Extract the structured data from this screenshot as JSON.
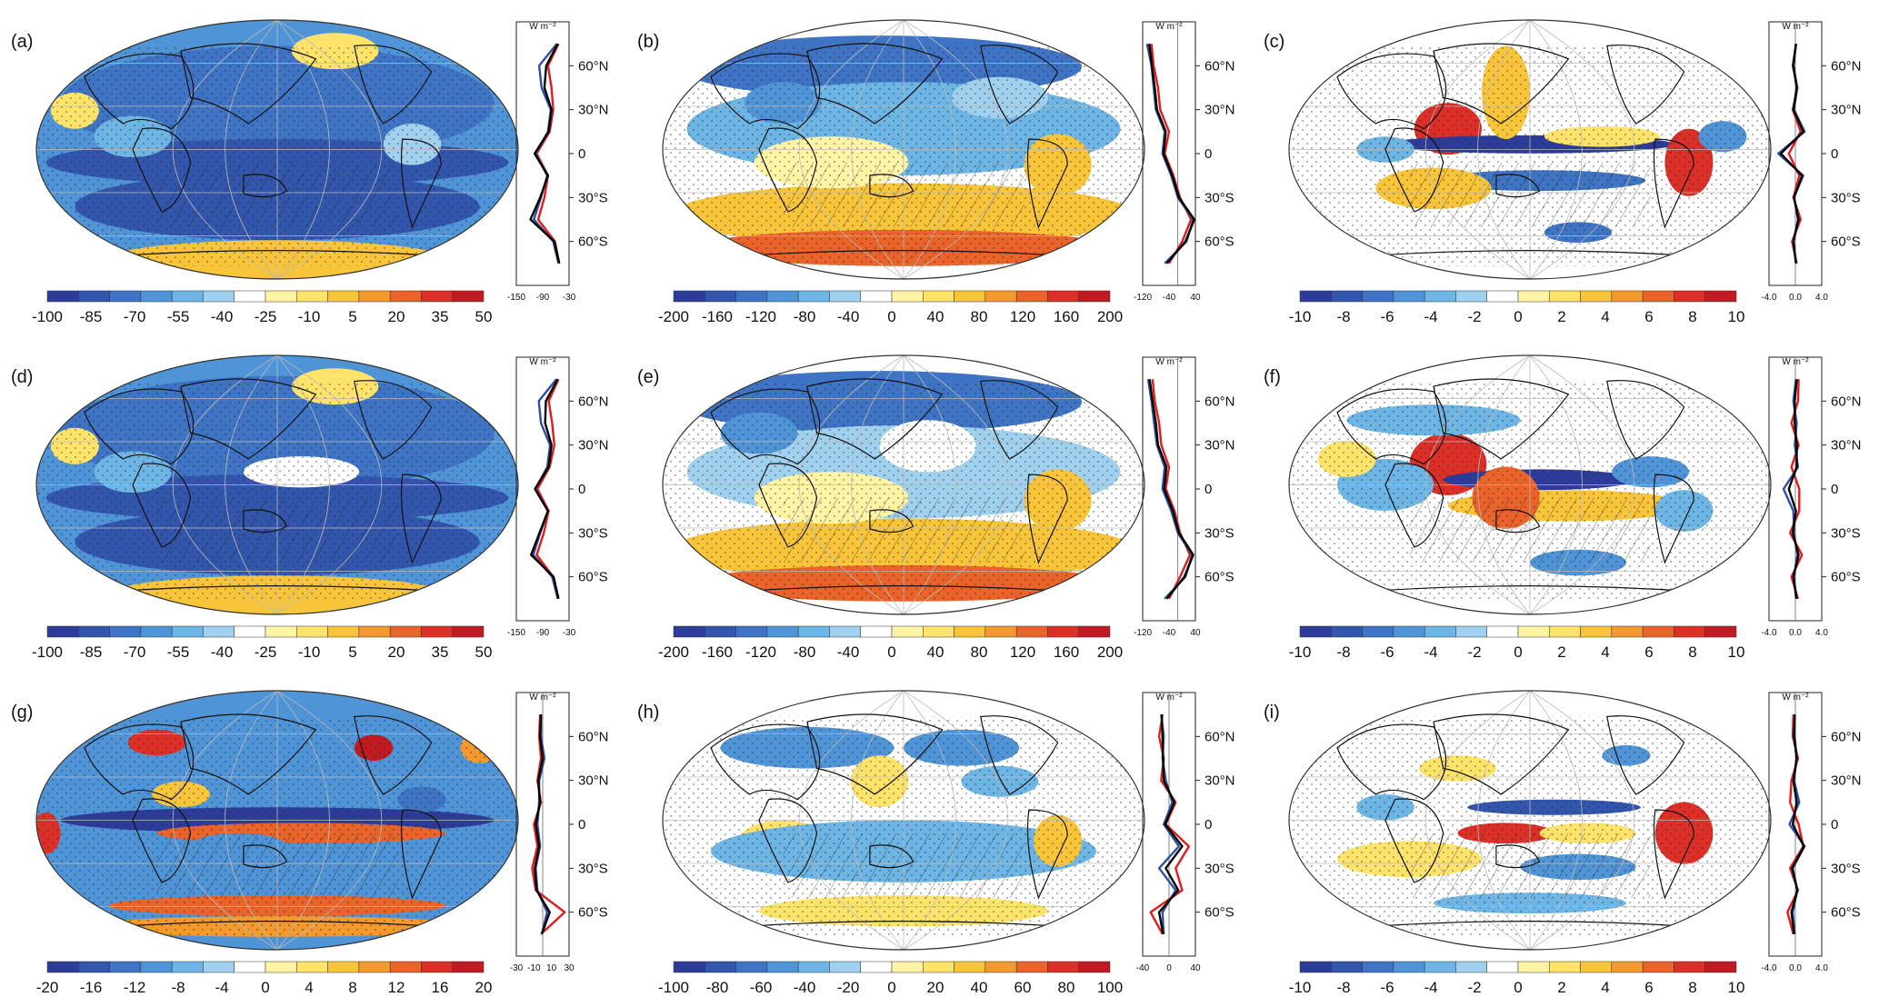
{
  "figure": {
    "panels": [
      {
        "label": "(a)",
        "colorbar_ticks": [
          "-100",
          "-85",
          "-70",
          "-55",
          "-40",
          "-25",
          "-10",
          "5",
          "20",
          "35",
          "50"
        ],
        "profile_xticks": [
          "-150",
          "-90",
          "-30"
        ],
        "profile_unit": "W m⁻²",
        "lat_ticks": [
          "60°N",
          "30°N",
          "0",
          "30°S",
          "60°S"
        ],
        "show_lat": false
      },
      {
        "label": "(b)",
        "colorbar_ticks": [
          "-200",
          "-160",
          "-120",
          "-80",
          "-40",
          "0",
          "40",
          "80",
          "120",
          "160",
          "200"
        ],
        "profile_xticks": [
          "-120",
          "-40",
          "40"
        ],
        "profile_unit": "W m⁻²",
        "lat_ticks": [
          "60°N",
          "30°N",
          "0",
          "30°S",
          "60°S"
        ],
        "show_lat": true
      },
      {
        "label": "(c)",
        "colorbar_ticks": [
          "-10",
          "-8",
          "-6",
          "-4",
          "-2",
          "0",
          "2",
          "4",
          "6",
          "8",
          "10"
        ],
        "profile_xticks": [
          "-4.0",
          "0.0",
          "4.0"
        ],
        "profile_unit": "W m⁻²",
        "lat_ticks": [
          "60°N",
          "30°N",
          "0",
          "30°S",
          "60°S"
        ],
        "show_lat": true
      },
      {
        "label": "(d)",
        "colorbar_ticks": [
          "-100",
          "-85",
          "-70",
          "-55",
          "-40",
          "-25",
          "-10",
          "5",
          "20",
          "35",
          "50"
        ],
        "profile_xticks": [
          "-150",
          "-90",
          "-30"
        ],
        "profile_unit": "W m⁻²",
        "lat_ticks": [
          "60°N",
          "30°N",
          "0",
          "30°S",
          "60°S"
        ],
        "show_lat": false
      },
      {
        "label": "(e)",
        "colorbar_ticks": [
          "-200",
          "-160",
          "-120",
          "-80",
          "-40",
          "0",
          "40",
          "80",
          "120",
          "160",
          "200"
        ],
        "profile_xticks": [
          "-120",
          "-40",
          "40"
        ],
        "profile_unit": "W m⁻²",
        "lat_ticks": [
          "60°N",
          "30°N",
          "0",
          "30°S",
          "60°S"
        ],
        "show_lat": true
      },
      {
        "label": "(f)",
        "colorbar_ticks": [
          "-10",
          "-8",
          "-6",
          "-4",
          "-2",
          "0",
          "2",
          "4",
          "6",
          "8",
          "10"
        ],
        "profile_xticks": [
          "-4.0",
          "0.0",
          "4.0"
        ],
        "profile_unit": "W m⁻²",
        "lat_ticks": [
          "60°N",
          "30°N",
          "0",
          "30°S",
          "60°S"
        ],
        "show_lat": true
      },
      {
        "label": "(g)",
        "colorbar_ticks": [
          "-20",
          "-16",
          "-12",
          "-8",
          "-4",
          "0",
          "4",
          "8",
          "12",
          "16",
          "20"
        ],
        "profile_xticks": [
          "-30",
          "-10",
          "10",
          "30"
        ],
        "profile_unit": "W m⁻²",
        "lat_ticks": [
          "60°N",
          "30°N",
          "0",
          "30°S",
          "60°S"
        ],
        "show_lat": false
      },
      {
        "label": "(h)",
        "colorbar_ticks": [
          "-100",
          "-80",
          "-60",
          "-40",
          "-20",
          "0",
          "20",
          "40",
          "60",
          "80",
          "100"
        ],
        "profile_xticks": [
          "-40",
          "0",
          "40"
        ],
        "profile_unit": "W m⁻²",
        "lat_ticks": [
          "60°N",
          "30°N",
          "0",
          "30°S",
          "60°S"
        ],
        "show_lat": true
      },
      {
        "label": "(i)",
        "colorbar_ticks": [
          "-10",
          "-8",
          "-6",
          "-4",
          "-2",
          "0",
          "2",
          "4",
          "6",
          "8",
          "10"
        ],
        "profile_xticks": [
          "-4.0",
          "0.0",
          "4.0"
        ],
        "profile_unit": "W m⁻²",
        "lat_ticks": [
          "60°N",
          "30°N",
          "0",
          "30°S",
          "60°S"
        ],
        "show_lat": true
      }
    ],
    "colors": {
      "colorbar": [
        "#2c3c98",
        "#3356ad",
        "#3e74c3",
        "#4f94d6",
        "#6cb5e4",
        "#9fd0ee",
        "#ffffff",
        "#fff3a6",
        "#fde36a",
        "#f8c53a",
        "#f29a2e",
        "#e9632a",
        "#db2f27",
        "#c01a22"
      ],
      "series": {
        "red": "#e41a1c",
        "blue": "#2e4fa0",
        "black": "#000000"
      }
    },
    "series_colors": [
      "red",
      "blue",
      "black"
    ]
  },
  "chart_data": {
    "type": "heatmap",
    "layout": "3x3 grid of global map panels, each with a zonal-mean latitude profile",
    "lat": [
      -75,
      -60,
      -45,
      -30,
      -15,
      0,
      15,
      30,
      45,
      60,
      75
    ],
    "panels": [
      {
        "label": "(a)",
        "type": "heatmap",
        "colorbar_range": [
          -100,
          50
        ],
        "profile_xlim": [
          -150,
          0
        ],
        "series": [
          {
            "color": "red",
            "values": [
              -28,
              -40,
              -88,
              -70,
              -60,
              -92,
              -55,
              -45,
              -50,
              -60,
              -30
            ]
          },
          {
            "color": "blue",
            "values": [
              -30,
              -45,
              -100,
              -80,
              -62,
              -95,
              -60,
              -52,
              -78,
              -85,
              -35
            ]
          },
          {
            "color": "black",
            "values": [
              -28,
              -42,
              -110,
              -82,
              -60,
              -98,
              -58,
              -50,
              -70,
              -65,
              -32
            ]
          }
        ]
      },
      {
        "label": "(b)",
        "type": "heatmap",
        "colorbar_range": [
          -200,
          200
        ],
        "profile_xlim": [
          -160,
          80
        ],
        "series": [
          {
            "color": "red",
            "values": [
              -40,
              20,
              60,
              10,
              -20,
              -60,
              -40,
              -80,
              -90,
              -110,
              -120
            ]
          },
          {
            "color": "blue",
            "values": [
              -60,
              40,
              70,
              0,
              -30,
              -70,
              -60,
              -100,
              -110,
              -120,
              -140
            ]
          },
          {
            "color": "black",
            "values": [
              -50,
              35,
              75,
              5,
              -25,
              -65,
              -55,
              -95,
              -105,
              -118,
              -130
            ]
          }
        ]
      },
      {
        "label": "(c)",
        "type": "heatmap",
        "colorbar_range": [
          -10,
          10
        ],
        "profile_xlim": [
          -4,
          4
        ],
        "series": [
          {
            "color": "red",
            "values": [
              0.2,
              -0.5,
              0.8,
              -0.3,
              0.6,
              -1.0,
              0.8,
              -0.4,
              0.3,
              -0.3,
              0.1
            ]
          },
          {
            "color": "blue",
            "values": [
              0.1,
              -0.3,
              0.4,
              -0.2,
              1.2,
              -2.6,
              1.4,
              -0.2,
              0.3,
              -0.4,
              0.1
            ]
          },
          {
            "color": "black",
            "values": [
              0.1,
              -0.3,
              0.5,
              -0.2,
              1.0,
              -2.2,
              1.2,
              -0.3,
              0.2,
              -0.3,
              0.1
            ]
          }
        ]
      },
      {
        "label": "(d)",
        "type": "heatmap",
        "colorbar_range": [
          -100,
          50
        ],
        "profile_xlim": [
          -150,
          0
        ],
        "series": [
          {
            "color": "red",
            "values": [
              -30,
              -45,
              -92,
              -72,
              -58,
              -90,
              -55,
              -42,
              -48,
              -58,
              -30
            ]
          },
          {
            "color": "blue",
            "values": [
              -32,
              -48,
              -102,
              -82,
              -60,
              -96,
              -62,
              -54,
              -80,
              -86,
              -36
            ]
          },
          {
            "color": "black",
            "values": [
              -30,
              -44,
              -108,
              -84,
              -60,
              -97,
              -58,
              -50,
              -68,
              -66,
              -32
            ]
          }
        ]
      },
      {
        "label": "(e)",
        "type": "heatmap",
        "colorbar_range": [
          -200,
          200
        ],
        "profile_xlim": [
          -160,
          80
        ],
        "series": [
          {
            "color": "red",
            "values": [
              -40,
              10,
              55,
              10,
              -15,
              -55,
              -40,
              -75,
              -85,
              -105,
              -115
            ]
          },
          {
            "color": "blue",
            "values": [
              -60,
              35,
              65,
              0,
              -30,
              -70,
              -60,
              -95,
              -108,
              -120,
              -135
            ]
          },
          {
            "color": "black",
            "values": [
              -50,
              30,
              70,
              5,
              -22,
              -62,
              -52,
              -90,
              -100,
              -115,
              -128
            ]
          }
        ]
      },
      {
        "label": "(f)",
        "type": "heatmap",
        "colorbar_range": [
          -10,
          10
        ],
        "profile_xlim": [
          -4,
          4
        ],
        "series": [
          {
            "color": "red",
            "values": [
              0.4,
              -0.6,
              1.0,
              -0.8,
              0.6,
              0.6,
              -0.6,
              0.5,
              -0.6,
              0.4,
              0.5
            ]
          },
          {
            "color": "blue",
            "values": [
              0.1,
              -0.2,
              0.3,
              -0.2,
              -0.3,
              -1.8,
              0.4,
              -0.1,
              0.2,
              -0.3,
              0.1
            ]
          },
          {
            "color": "black",
            "values": [
              0.2,
              -0.3,
              0.5,
              -0.4,
              0.1,
              -1.0,
              0.2,
              0.2,
              -0.1,
              -0.1,
              0.2
            ]
          }
        ]
      },
      {
        "label": "(g)",
        "type": "heatmap",
        "colorbar_range": [
          -20,
          20
        ],
        "profile_xlim": [
          -30,
          30
        ],
        "series": [
          {
            "color": "red",
            "values": [
              -2,
              25,
              -8,
              -12,
              -6,
              -10,
              -2,
              -6,
              -2,
              -4,
              -3
            ]
          },
          {
            "color": "blue",
            "values": [
              -1,
              5,
              -6,
              -8,
              -3,
              -6,
              -4,
              -4,
              2,
              -2,
              -2
            ]
          },
          {
            "color": "black",
            "values": [
              -1,
              8,
              -7,
              -9,
              -4,
              -8,
              -3,
              -5,
              0,
              -3,
              -2
            ]
          }
        ]
      },
      {
        "label": "(h)",
        "type": "heatmap",
        "colorbar_range": [
          -100,
          100
        ],
        "profile_xlim": [
          -40,
          40
        ],
        "series": [
          {
            "color": "red",
            "values": [
              -10,
              -28,
              20,
              10,
              30,
              -5,
              10,
              -12,
              -8,
              -15,
              -10
            ]
          },
          {
            "color": "blue",
            "values": [
              -8,
              -10,
              10,
              -15,
              15,
              -8,
              5,
              -5,
              -10,
              -8,
              -12
            ]
          },
          {
            "color": "black",
            "values": [
              -9,
              -15,
              14,
              -5,
              20,
              -6,
              8,
              -8,
              -9,
              -10,
              -11
            ]
          }
        ]
      },
      {
        "label": "(i)",
        "type": "heatmap",
        "colorbar_range": [
          -10,
          10
        ],
        "profile_xlim": [
          -4,
          4
        ],
        "series": [
          {
            "color": "red",
            "values": [
              -0.3,
              -1.2,
              0.4,
              -0.8,
              1.2,
              0.5,
              -0.8,
              -0.6,
              0.4,
              -0.4,
              -0.3
            ]
          },
          {
            "color": "blue",
            "values": [
              -0.1,
              -0.4,
              0.3,
              -0.4,
              1.4,
              -0.9,
              0.6,
              -0.2,
              0.2,
              -0.1,
              -0.1
            ]
          },
          {
            "color": "black",
            "values": [
              -0.2,
              -0.6,
              0.3,
              -0.5,
              1.3,
              -0.4,
              0.2,
              -0.3,
              0.2,
              -0.2,
              -0.1
            ]
          }
        ]
      }
    ]
  }
}
